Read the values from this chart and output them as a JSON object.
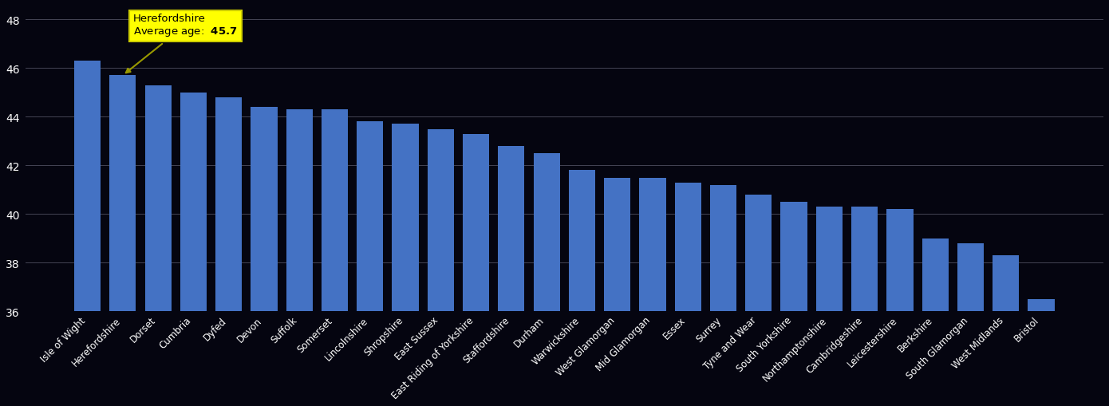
{
  "categories": [
    "Isle of Wight",
    "Herefordshire",
    "Dorset",
    "Cumbria",
    "Dyfed",
    "Devon",
    "Suffolk",
    "Somerset",
    "Lincolnshire",
    "Shropshire",
    "East Sussex",
    "East Riding of Yorkshire",
    "Staffordshire",
    "Durham",
    "Warwickshire",
    "West Glamorgan",
    "Mid Glamorgan",
    "Essex",
    "Surrey",
    "Tyne and Wear",
    "South Yorkshire",
    "Northamptonshire",
    "Cambridgeshire",
    "Leicestershire",
    "Berkshire",
    "South Glamorgan",
    "West Midlands",
    "Bristol"
  ],
  "values": [
    46.3,
    45.7,
    45.3,
    45.0,
    44.8,
    44.4,
    44.3,
    44.3,
    43.8,
    43.7,
    43.5,
    43.3,
    42.8,
    42.5,
    41.8,
    41.5,
    41.5,
    41.3,
    41.2,
    40.8,
    40.5,
    40.3,
    40.3,
    40.2,
    39.0,
    38.8,
    38.3,
    36.5
  ],
  "highlight_index": 1,
  "highlight_label": "Herefordshire",
  "highlight_avg": "45.7",
  "bar_color": "#4472C4",
  "annotation_bg": "#FFFF00",
  "annotation_border": "#CCCC00",
  "background_color": "#050510",
  "text_color": "#FFFFFF",
  "grid_color": "#444455",
  "ylim_min": 36,
  "ylim_max": 48.6,
  "yticks": [
    36,
    38,
    40,
    42,
    44,
    46,
    48
  ],
  "bar_bottom": 36,
  "bar_width": 0.75
}
